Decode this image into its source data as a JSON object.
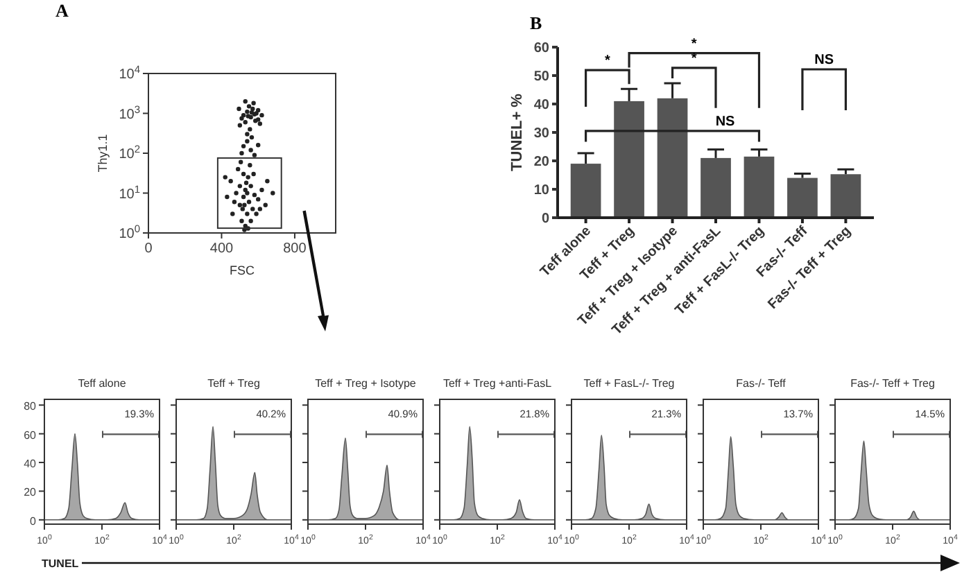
{
  "chart_data": [
    {
      "type": "scatter",
      "title": "A",
      "xlabel": "FSC",
      "ylabel": "Thy1.1",
      "log": "y",
      "marker": "circle",
      "xlim": [
        0,
        1024
      ],
      "xticks": [
        0,
        400,
        800
      ],
      "ylim": [
        1,
        10000
      ],
      "yticks": [
        {
          "value": 1,
          "label": "10$^{0}$"
        },
        {
          "value": 10,
          "label": "10$^{1}$"
        },
        {
          "value": 100,
          "label": "10$^{2}$"
        },
        {
          "value": 1000,
          "label": "10$^{3}$"
        },
        {
          "value": 10000,
          "label": "10$^{4}$"
        }
      ],
      "series": [
        {
          "color": "#222222",
          "x": [
            520,
            540,
            560,
            580,
            600,
            550,
            530,
            570,
            590,
            510,
            545,
            565,
            600,
            620,
            500,
            530,
            585,
            555,
            575,
            610,
            495,
            540,
            565,
            520,
            560,
            540,
            580,
            510,
            600,
            450,
            480,
            500,
            520,
            530,
            540,
            550,
            560,
            570,
            580,
            520,
            510,
            530,
            545,
            555,
            490,
            470,
            600,
            620,
            650,
            430,
            460,
            500,
            540,
            525,
            535,
            515,
            560,
            575,
            590,
            505,
            610,
            640,
            680,
            420,
            545,
            525
          ],
          "values": [
            900,
            1100,
            800,
            950,
            700,
            1500,
            600,
            1300,
            1000,
            750,
            850,
            1050,
            1200,
            900,
            500,
            2000,
            650,
            400,
            1800,
            550,
            1300,
            300,
            250,
            150,
            120,
            200,
            90,
            100,
            160,
            20,
            10,
            5,
            8,
            12,
            3,
            6,
            15,
            4,
            9,
            30,
            2,
            1.5,
            25,
            50,
            40,
            6,
            7,
            12,
            20,
            8,
            3,
            15,
            10,
            5,
            18,
            4,
            2,
            30,
            3,
            60,
            4,
            5,
            10,
            25,
            1.3,
            1.2
          ]
        }
      ]
    },
    {
      "type": "bar",
      "title": "B",
      "ylabel": "TUNEL+ %",
      "categories": [
        "Teff alone",
        "Teff + Treg",
        "Teff + Treg + Isotype",
        "Teff + Treg + anti-FasL",
        "Teff + FasL-/- Treg",
        "Fas-/- Teff",
        "Fas-/- Teff + Treg"
      ],
      "ylim": [
        0,
        60
      ],
      "yticks": [
        0,
        10,
        20,
        30,
        40,
        50,
        60
      ],
      "series": [
        {
          "color": "#555555",
          "values": [
            19,
            41,
            42,
            21,
            21.5,
            14,
            15.3
          ],
          "errors": [
            3.7,
            4.3,
            5.3,
            3,
            2.5,
            1.5,
            1.7
          ]
        }
      ],
      "annotations": [
        "*",
        "*",
        "*",
        "NS",
        "NS"
      ]
    },
    {
      "type": "area",
      "title": "Teff alone",
      "xlabel": "TUNEL",
      "log": "x",
      "xlim": [
        1,
        10000
      ],
      "xticks": [
        {
          "value": 1,
          "label": "10$^{0}$"
        },
        {
          "value": 100,
          "label": "10$^{2}$"
        },
        {
          "value": 10000,
          "label": "10$^{4}$"
        }
      ],
      "ylim": [
        -3,
        84
      ],
      "yticks": [
        0,
        20,
        40,
        60,
        80
      ],
      "series": [
        {
          "color": "#a6a6a6",
          "x": [
            1,
            3,
            5,
            7,
            9,
            11.5,
            14,
            17,
            22,
            30,
            60,
            150,
            300,
            450,
            630,
            800,
            1100,
            2000,
            10000
          ],
          "values": [
            0,
            0,
            1,
            8,
            35,
            60,
            40,
            12,
            3,
            1,
            0,
            0,
            1,
            5,
            12,
            5,
            1,
            0,
            0
          ]
        }
      ],
      "annotations": [
        "19.3%"
      ]
    },
    {
      "type": "area",
      "title": "Teff + Treg",
      "log": "x",
      "tick_labels": "x",
      "xlim": [
        1,
        10000
      ],
      "xticks": [
        {
          "value": 1,
          "label": "10$^{0}$"
        },
        {
          "value": 100,
          "label": "10$^{2}$"
        },
        {
          "value": 10000,
          "label": "10$^{4}$"
        }
      ],
      "ylim": [
        -3,
        84
      ],
      "yticks": [
        0,
        20,
        40,
        60,
        80
      ],
      "series": [
        {
          "color": "#a6a6a6",
          "x": [
            1,
            5,
            9,
            12,
            15,
            19,
            23,
            28,
            35,
            50,
            100,
            200,
            300,
            400,
            540,
            650,
            850,
            1500,
            10000
          ],
          "values": [
            0,
            0,
            1,
            8,
            35,
            65,
            40,
            10,
            3,
            1,
            1,
            3,
            8,
            18,
            33,
            18,
            5,
            0,
            0
          ]
        }
      ],
      "annotations": [
        "40.2%"
      ]
    },
    {
      "type": "area",
      "title": "Teff + Treg + Isotype",
      "log": "x",
      "tick_labels": "x",
      "xlim": [
        1,
        10000
      ],
      "xticks": [
        {
          "value": 1,
          "label": "10$^{0}$"
        },
        {
          "value": 100,
          "label": "10$^{2}$"
        },
        {
          "value": 10000,
          "label": "10$^{4}$"
        }
      ],
      "ylim": [
        -3,
        84
      ],
      "yticks": [
        0,
        20,
        40,
        60,
        80
      ],
      "series": [
        {
          "color": "#a6a6a6",
          "x": [
            1,
            5,
            9,
            12,
            15,
            20,
            24,
            29,
            36,
            50,
            100,
            200,
            300,
            420,
            560,
            680,
            880,
            1500,
            10000
          ],
          "values": [
            0,
            0,
            1,
            7,
            30,
            57,
            36,
            10,
            3,
            1,
            1,
            3,
            9,
            20,
            38,
            20,
            5,
            0,
            0
          ]
        }
      ],
      "annotations": [
        "40.9%"
      ]
    },
    {
      "type": "area",
      "title": "Teff + Treg +anti-FasL",
      "log": "x",
      "tick_labels": "x",
      "xlim": [
        1,
        10000
      ],
      "xticks": [
        {
          "value": 1,
          "label": "10$^{0}$"
        },
        {
          "value": 100,
          "label": "10$^{2}$"
        },
        {
          "value": 10000,
          "label": "10$^{4}$"
        }
      ],
      "ylim": [
        -3,
        84
      ],
      "yticks": [
        0,
        20,
        40,
        60,
        80
      ],
      "series": [
        {
          "color": "#a6a6a6",
          "x": [
            1,
            3,
            5,
            7,
            9,
            11,
            13.5,
            16,
            21,
            30,
            60,
            150,
            300,
            450,
            590,
            750,
            1000,
            2000,
            10000
          ],
          "values": [
            0,
            0,
            1,
            8,
            38,
            65,
            42,
            12,
            3,
            1,
            0,
            0,
            1,
            5,
            14,
            6,
            1,
            0,
            0
          ]
        }
      ],
      "annotations": [
        "21.8%"
      ]
    },
    {
      "type": "area",
      "title": "Teff + FasL-/- Treg",
      "log": "x",
      "tick_labels": "x",
      "xlim": [
        1,
        10000
      ],
      "xticks": [
        {
          "value": 1,
          "label": "10$^{0}$"
        },
        {
          "value": 100,
          "label": "10$^{2}$"
        },
        {
          "value": 10000,
          "label": "10$^{4}$"
        }
      ],
      "ylim": [
        -3,
        84
      ],
      "yticks": [
        0,
        20,
        40,
        60,
        80
      ],
      "series": [
        {
          "color": "#a6a6a6",
          "x": [
            1,
            3,
            5,
            7,
            9,
            11,
            13.5,
            16,
            21,
            30,
            60,
            150,
            280,
            380,
            490,
            620,
            850,
            1800,
            10000
          ],
          "values": [
            0,
            0,
            1,
            8,
            35,
            59,
            38,
            11,
            3,
            1,
            0,
            0,
            1,
            4,
            11,
            4,
            1,
            0,
            0
          ]
        }
      ],
      "annotations": [
        "21.3%"
      ]
    },
    {
      "type": "area",
      "title": "Fas-/- Teff",
      "log": "x",
      "tick_labels": "x",
      "xlim": [
        1,
        10000
      ],
      "xticks": [
        {
          "value": 1,
          "label": "10$^{0}$"
        },
        {
          "value": 100,
          "label": "10$^{2}$"
        },
        {
          "value": 10000,
          "label": "10$^{4}$"
        }
      ],
      "ylim": [
        -3,
        84
      ],
      "yticks": [
        0,
        20,
        40,
        60,
        80
      ],
      "series": [
        {
          "color": "#a6a6a6",
          "x": [
            1,
            2.5,
            4,
            6,
            7.5,
            9,
            11,
            13.5,
            18,
            25,
            60,
            150,
            300,
            420,
            540,
            680,
            900,
            1800,
            10000
          ],
          "values": [
            0,
            0,
            1,
            8,
            35,
            58,
            38,
            11,
            3,
            1,
            0,
            0,
            0,
            2,
            5,
            2,
            0,
            0,
            0
          ]
        }
      ],
      "annotations": [
        "13.7%"
      ]
    },
    {
      "type": "area",
      "title": "Fas-/- Teff + Treg",
      "log": "x",
      "tick_labels": "x",
      "xlim": [
        1,
        10000
      ],
      "xticks": [
        {
          "value": 1,
          "label": "10$^{0}$"
        },
        {
          "value": 100,
          "label": "10$^{2}$"
        },
        {
          "value": 10000,
          "label": "10$^{4}$"
        }
      ],
      "ylim": [
        -3,
        84
      ],
      "yticks": [
        0,
        20,
        40,
        60,
        80
      ],
      "series": [
        {
          "color": "#a6a6a6",
          "x": [
            1,
            3,
            4.5,
            6.5,
            8,
            10,
            12,
            15,
            20,
            28,
            60,
            150,
            300,
            420,
            540,
            680,
            900,
            1800,
            10000
          ],
          "values": [
            0,
            0,
            1,
            8,
            33,
            55,
            36,
            11,
            3,
            1,
            0,
            0,
            0,
            2,
            6,
            2,
            0,
            0,
            0
          ]
        }
      ],
      "annotations": [
        "14.5%"
      ]
    }
  ]
}
